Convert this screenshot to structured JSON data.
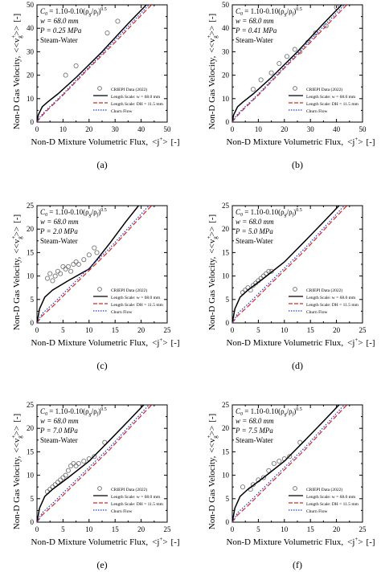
{
  "figure": {
    "y_axis_label": "Non-D Gas Velocity,",
    "y_axis_symbol": "<<v",
    "y_axis_sup": "+",
    "y_axis_sub": "g",
    "y_axis_close": ">>",
    "y_axis_unit": "[-]",
    "x_axis_label": "Non-D Mixture Volumetric Flux,",
    "x_axis_symbol": "<j",
    "x_axis_sup": "+",
    "x_axis_close": ">",
    "x_axis_unit": "[-]",
    "correlation": "C0 = 1.10-0.10(ρg/ρf)^0.5",
    "correlation_parts": {
      "c": "C",
      "c_sub": "0",
      "body": " = 1.10-0.10(ρ",
      "g_sub": "g",
      "slash": "/ρ",
      "f_sub": "f",
      "close": ")",
      "exp": "0.5"
    },
    "width_text": "w = 68.0 mm",
    "fluid": "Steam-Water",
    "legend": [
      "CRIEPI Data (2022)",
      "Length Scale: w = 68.0 mm",
      "Length Scale: DH = 11.5 mm",
      "Churn Flow"
    ],
    "colors": {
      "solid": "#000000",
      "dashed": "#d62728",
      "dotted": "#1f3fd0",
      "points": "#777777"
    }
  },
  "chart_data": [
    {
      "type": "scatter",
      "panel_label": "(a)",
      "pressure": "P = 0.25 MPa",
      "xlim": [
        0,
        50
      ],
      "ylim": [
        0,
        50
      ],
      "xticks": [
        0,
        10,
        20,
        30,
        40,
        50
      ],
      "yticks": [
        0,
        10,
        20,
        30,
        40,
        50
      ],
      "series": [
        {
          "name": "CRIEPI Data (2022)",
          "style": "points",
          "x": [
            11,
            15,
            27,
            31
          ],
          "y": [
            20,
            24,
            38,
            43
          ]
        },
        {
          "name": "Length Scale: w = 68.0 mm",
          "style": "solid",
          "x": [
            0,
            0.5,
            2,
            4,
            8,
            15,
            25,
            35,
            42
          ],
          "y": [
            0,
            3,
            6.5,
            8.5,
            12,
            19,
            30,
            42,
            50
          ]
        },
        {
          "name": "Length Scale: DH = 11.5 mm",
          "style": "dashed",
          "x": [
            0,
            1,
            3,
            10,
            20,
            30,
            40,
            44
          ],
          "y": [
            0,
            1.5,
            4,
            11.5,
            23,
            34,
            45.5,
            50
          ]
        },
        {
          "name": "Churn Flow",
          "style": "dotted",
          "x": [
            0,
            1,
            3,
            10,
            20,
            30,
            40,
            43
          ],
          "y": [
            0,
            2,
            4.5,
            12,
            23.5,
            35,
            46.5,
            50
          ]
        }
      ]
    },
    {
      "type": "scatter",
      "panel_label": "(b)",
      "pressure": "P = 0.41 MPa",
      "xlim": [
        0,
        50
      ],
      "ylim": [
        0,
        50
      ],
      "xticks": [
        0,
        10,
        20,
        30,
        40,
        50
      ],
      "yticks": [
        0,
        10,
        20,
        30,
        40,
        50
      ],
      "series": [
        {
          "name": "CRIEPI Data (2022)",
          "style": "points",
          "x": [
            8,
            11,
            15,
            18,
            21,
            24,
            26,
            29,
            32,
            36,
            40
          ],
          "y": [
            14,
            18,
            21,
            25,
            28,
            31,
            30,
            34,
            38,
            41,
            49
          ]
        },
        {
          "name": "Length Scale: w = 68.0 mm",
          "style": "solid",
          "x": [
            0,
            0.5,
            2,
            4,
            8,
            15,
            25,
            35,
            42
          ],
          "y": [
            0,
            3,
            6.5,
            8.5,
            12,
            19,
            30,
            42,
            50
          ]
        },
        {
          "name": "Length Scale: DH = 11.5 mm",
          "style": "dashed",
          "x": [
            0,
            1,
            3,
            10,
            20,
            30,
            40,
            44
          ],
          "y": [
            0,
            1.5,
            4,
            11.5,
            23,
            34,
            45.5,
            50
          ]
        },
        {
          "name": "Churn Flow",
          "style": "dotted",
          "x": [
            0,
            1,
            3,
            10,
            20,
            30,
            40,
            43
          ],
          "y": [
            0,
            2,
            4.5,
            12,
            23.5,
            35,
            46.5,
            50
          ]
        }
      ]
    },
    {
      "type": "scatter",
      "panel_label": "(c)",
      "pressure": "P = 2.0 MPa",
      "xlim": [
        0,
        25
      ],
      "ylim": [
        0,
        25
      ],
      "xticks": [
        0,
        5,
        10,
        15,
        20,
        25
      ],
      "yticks": [
        0,
        5,
        10,
        15,
        20,
        25
      ],
      "series": [
        {
          "name": "CRIEPI Data (2022)",
          "style": "points",
          "x": [
            2,
            2.5,
            3,
            3.5,
            4,
            4.5,
            5,
            5.5,
            6,
            6.5,
            7,
            7.5,
            8,
            9,
            10,
            11,
            11.5
          ],
          "y": [
            9.5,
            10.5,
            9,
            10,
            11,
            10.5,
            12,
            11.5,
            12,
            11,
            12.5,
            13,
            12.5,
            13.5,
            14.5,
            16,
            15
          ]
        },
        {
          "name": "Length Scale: w = 68.0 mm",
          "style": "solid",
          "x": [
            0,
            0.5,
            1.5,
            3,
            6,
            10,
            11.5,
            14,
            17,
            19.5
          ],
          "y": [
            0,
            3,
            5.5,
            7,
            9,
            11.5,
            13.5,
            17,
            21.5,
            25
          ]
        },
        {
          "name": "Length Scale: DH = 11.5 mm",
          "style": "dashed",
          "x": [
            0,
            1,
            3,
            8,
            14,
            19,
            22
          ],
          "y": [
            0,
            1.5,
            3.5,
            9,
            15.5,
            21.5,
            25
          ]
        },
        {
          "name": "Churn Flow",
          "style": "dotted",
          "x": [
            0,
            1,
            3,
            8,
            14,
            19,
            21.5
          ],
          "y": [
            0,
            2,
            4,
            9.5,
            16,
            22,
            25
          ]
        }
      ]
    },
    {
      "type": "scatter",
      "panel_label": "(d)",
      "pressure": "P = 5.0 MPa",
      "xlim": [
        0,
        25
      ],
      "ylim": [
        0,
        25
      ],
      "xticks": [
        0,
        5,
        10,
        15,
        20,
        25
      ],
      "yticks": [
        0,
        5,
        10,
        15,
        20,
        25
      ],
      "series": [
        {
          "name": "CRIEPI Data (2022)",
          "style": "points",
          "x": [
            2,
            2.5,
            3,
            3.5,
            4,
            4.5,
            5,
            5.5,
            6,
            6.5,
            7,
            7.5
          ],
          "y": [
            6.5,
            7,
            7.5,
            7,
            8,
            8.5,
            9,
            9.5,
            10,
            10.5,
            11,
            11
          ]
        },
        {
          "name": "Length Scale: w = 68.0 mm",
          "style": "solid",
          "x": [
            0,
            0.5,
            1.5,
            3,
            6,
            10,
            14,
            17.5,
            20.5
          ],
          "y": [
            0,
            3,
            5.5,
            7,
            9.5,
            13,
            17.5,
            21.5,
            25
          ]
        },
        {
          "name": "Length Scale: DH = 11.5 mm",
          "style": "dashed",
          "x": [
            0,
            1,
            3,
            8,
            14,
            19,
            22
          ],
          "y": [
            0,
            1.5,
            3.5,
            9,
            15.5,
            21.5,
            25
          ]
        },
        {
          "name": "Churn Flow",
          "style": "dotted",
          "x": [
            0,
            1,
            3,
            8,
            14,
            19,
            21.5
          ],
          "y": [
            0,
            2,
            4,
            9.5,
            16,
            22,
            25
          ]
        }
      ]
    },
    {
      "type": "scatter",
      "panel_label": "(e)",
      "pressure": "P = 7.0 MPa",
      "xlim": [
        0,
        25
      ],
      "ylim": [
        0,
        25
      ],
      "xticks": [
        0,
        5,
        10,
        15,
        20,
        25
      ],
      "yticks": [
        0,
        5,
        10,
        15,
        20,
        25
      ],
      "series": [
        {
          "name": "CRIEPI Data (2022)",
          "style": "points",
          "x": [
            2,
            2.5,
            3,
            3.5,
            4,
            4.5,
            5,
            5.5,
            6,
            6.5,
            7,
            7.5,
            8,
            9,
            10,
            11,
            13
          ],
          "y": [
            6.5,
            7,
            7.5,
            8,
            8.5,
            9,
            9.5,
            10,
            11,
            12,
            12.5,
            12,
            12.5,
            13,
            13.5,
            14,
            17
          ]
        },
        {
          "name": "Length Scale: w = 68.0 mm",
          "style": "solid",
          "x": [
            0,
            0.5,
            1.5,
            3,
            6,
            10,
            14,
            17.5,
            20.5
          ],
          "y": [
            0,
            3,
            5.5,
            7,
            9.5,
            13,
            17.5,
            21.5,
            25
          ]
        },
        {
          "name": "Length Scale: DH = 11.5 mm",
          "style": "dashed",
          "x": [
            0,
            1,
            3,
            8,
            14,
            19,
            22
          ],
          "y": [
            0,
            1.5,
            3.5,
            9,
            15.5,
            21.5,
            25
          ]
        },
        {
          "name": "Churn Flow",
          "style": "dotted",
          "x": [
            0,
            1,
            3,
            8,
            14,
            19,
            21.5
          ],
          "y": [
            0,
            2,
            4,
            9.5,
            16,
            22,
            25
          ]
        }
      ]
    },
    {
      "type": "scatter",
      "panel_label": "(f)",
      "pressure": "P = 7.5 MPa",
      "xlim": [
        0,
        25
      ],
      "ylim": [
        0,
        25
      ],
      "xticks": [
        0,
        5,
        10,
        15,
        20,
        25
      ],
      "yticks": [
        0,
        5,
        10,
        15,
        20,
        25
      ],
      "series": [
        {
          "name": "CRIEPI Data (2022)",
          "style": "points",
          "x": [
            2,
            3.5,
            4,
            5,
            6,
            7,
            8,
            9,
            10,
            11,
            13
          ],
          "y": [
            7.5,
            7,
            8,
            9,
            9.5,
            11,
            12.5,
            13,
            13.5,
            14,
            17
          ]
        },
        {
          "name": "Length Scale: w = 68.0 mm",
          "style": "solid",
          "x": [
            0,
            0.5,
            1.5,
            3,
            6,
            10,
            14,
            17.5,
            20.5
          ],
          "y": [
            0,
            3,
            5.5,
            7,
            9.5,
            13,
            17.5,
            21.5,
            25
          ]
        },
        {
          "name": "Length Scale: DH = 11.5 mm",
          "style": "dashed",
          "x": [
            0,
            1,
            3,
            8,
            14,
            19,
            22
          ],
          "y": [
            0,
            1.5,
            3.5,
            9,
            15.5,
            21.5,
            25
          ]
        },
        {
          "name": "Churn Flow",
          "style": "dotted",
          "x": [
            0,
            1,
            3,
            8,
            14,
            19,
            21.5
          ],
          "y": [
            0,
            2,
            4,
            9.5,
            16,
            22,
            25
          ]
        }
      ]
    }
  ]
}
